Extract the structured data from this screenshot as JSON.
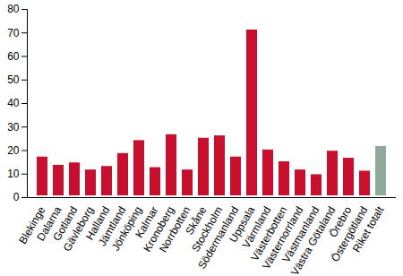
{
  "chart_data": {
    "type": "bar",
    "categories": [
      "Blekinge",
      "Dalarna",
      "Gotland",
      "Gävleborg",
      "Halland",
      "Jämtland",
      "Jönköping",
      "Kalmar",
      "Kronoberg",
      "Norrbotten",
      "Skåne",
      "Stockholm",
      "Södermanland",
      "Uppsala",
      "Värmland",
      "Västerbotten",
      "Västernorrland",
      "Västmanland",
      "Västra Götaland",
      "Örebro",
      "Östergötland",
      "Riket totalt"
    ],
    "values": [
      18,
      14.5,
      15.5,
      12.5,
      14,
      19.5,
      25,
      13.5,
      27.5,
      12.5,
      26,
      27,
      18,
      72,
      21,
      16,
      12.5,
      10.5,
      20.5,
      17.5,
      12,
      22.5
    ],
    "colors": [
      "#c8102e",
      "#c8102e",
      "#c8102e",
      "#c8102e",
      "#c8102e",
      "#c8102e",
      "#c8102e",
      "#c8102e",
      "#c8102e",
      "#c8102e",
      "#c8102e",
      "#c8102e",
      "#c8102e",
      "#c8102e",
      "#c8102e",
      "#c8102e",
      "#c8102e",
      "#c8102e",
      "#c8102e",
      "#c8102e",
      "#c8102e",
      "#8fa99b"
    ],
    "ylim": [
      0,
      80
    ],
    "yticks": [
      0,
      10,
      20,
      30,
      40,
      50,
      60,
      70,
      80
    ],
    "grid": false
  }
}
